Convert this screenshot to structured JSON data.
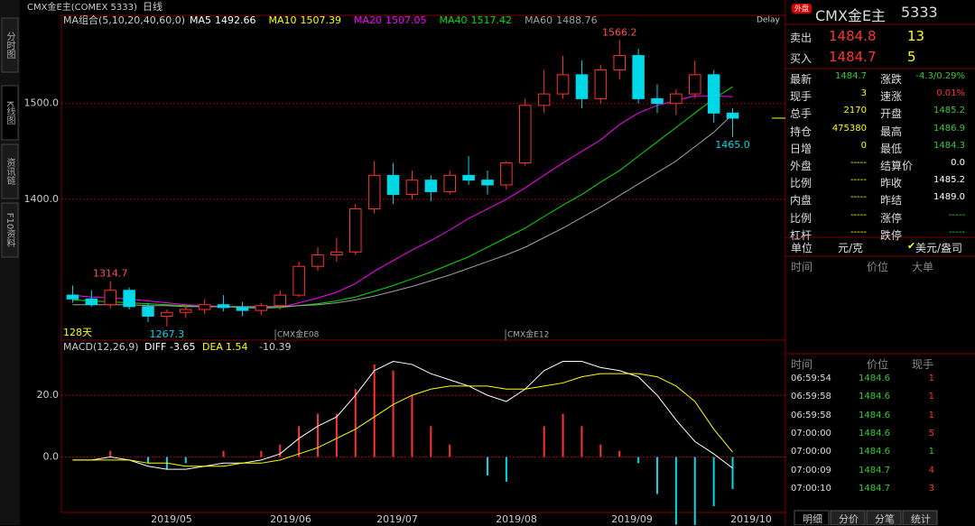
{
  "app": {
    "left_tabs": [
      "分时图",
      "K线图",
      "资讯链",
      "F10资料"
    ],
    "chart_title": "CMX金E主(COMEX 5333)",
    "period": "日线",
    "delay": "Delay",
    "days": "128天",
    "contract_marks": [
      "CMX金E08",
      "CMX金E12"
    ]
  },
  "chart_data": {
    "type": "candlestick",
    "ma_label": "MA组合(5,10,20,40,60,0)",
    "ma_legend": [
      {
        "name": "MA5",
        "value": 1492.66,
        "color": "#ffffff"
      },
      {
        "name": "MA10",
        "value": 1507.39,
        "color": "#ffff00"
      },
      {
        "name": "MA20",
        "value": 1507.05,
        "color": "#ff00ff"
      },
      {
        "name": "MA40",
        "value": 1517.42,
        "color": "#00e000"
      },
      {
        "name": "MA60",
        "value": 1488.76,
        "color": "#a0a0a0"
      }
    ],
    "candles": [
      [
        1300,
        1310,
        1292,
        1296
      ],
      [
        1296,
        1305,
        1288,
        1290
      ],
      [
        1290,
        1314.7,
        1286,
        1305
      ],
      [
        1305,
        1308,
        1285,
        1288
      ],
      [
        1288,
        1292,
        1272,
        1278
      ],
      [
        1278,
        1285,
        1267.3,
        1282
      ],
      [
        1282,
        1290,
        1276,
        1285
      ],
      [
        1285,
        1296,
        1280,
        1290
      ],
      [
        1290,
        1300,
        1283,
        1287
      ],
      [
        1287,
        1293,
        1278,
        1284
      ],
      [
        1284,
        1292,
        1279,
        1289
      ],
      [
        1289,
        1305,
        1285,
        1300
      ],
      [
        1300,
        1335,
        1298,
        1330
      ],
      [
        1330,
        1350,
        1325,
        1342
      ],
      [
        1342,
        1360,
        1335,
        1345
      ],
      [
        1345,
        1395,
        1342,
        1390
      ],
      [
        1390,
        1440,
        1385,
        1425
      ],
      [
        1425,
        1438,
        1395,
        1405
      ],
      [
        1405,
        1430,
        1400,
        1420
      ],
      [
        1420,
        1425,
        1398,
        1408
      ],
      [
        1408,
        1430,
        1405,
        1425
      ],
      [
        1425,
        1445,
        1415,
        1420
      ],
      [
        1420,
        1430,
        1405,
        1415
      ],
      [
        1415,
        1440,
        1410,
        1438
      ],
      [
        1438,
        1505,
        1435,
        1498
      ],
      [
        1498,
        1535,
        1490,
        1510
      ],
      [
        1510,
        1550,
        1505,
        1530
      ],
      [
        1530,
        1545,
        1495,
        1505
      ],
      [
        1505,
        1540,
        1500,
        1535
      ],
      [
        1535,
        1566.2,
        1525,
        1550
      ],
      [
        1550,
        1557,
        1500,
        1505
      ],
      [
        1505,
        1520,
        1490,
        1500
      ],
      [
        1500,
        1515,
        1488,
        1510
      ],
      [
        1510,
        1545,
        1505,
        1530
      ],
      [
        1530,
        1535,
        1480,
        1490
      ],
      [
        1490,
        1495,
        1465,
        1484.7
      ]
    ],
    "ma_series": [
      {
        "name": "MA20",
        "color": "#ff00ff",
        "values": [
          1300,
          1298,
          1297,
          1296,
          1294,
          1292,
          1290,
          1289,
          1288,
          1287,
          1286,
          1287,
          1292,
          1297,
          1303,
          1312,
          1325,
          1336,
          1347,
          1357,
          1368,
          1380,
          1390,
          1400,
          1412,
          1425,
          1438,
          1450,
          1462,
          1478,
          1490,
          1498,
          1503,
          1508,
          1508,
          1507.05
        ]
      },
      {
        "name": "MA40",
        "color": "#00e000",
        "values": [
          1295,
          1294,
          1293,
          1292,
          1291,
          1290,
          1289,
          1288,
          1288,
          1287,
          1287,
          1287,
          1289,
          1291,
          1294,
          1298,
          1304,
          1310,
          1317,
          1324,
          1332,
          1340,
          1350,
          1360,
          1370,
          1382,
          1394,
          1405,
          1418,
          1430,
          1445,
          1460,
          1475,
          1490,
          1505,
          1517.42
        ]
      },
      {
        "name": "MA60",
        "color": "#a0a0a0",
        "values": [
          1290,
          1290,
          1290,
          1290,
          1289,
          1289,
          1288,
          1288,
          1288,
          1288,
          1288,
          1288,
          1289,
          1290,
          1292,
          1295,
          1299,
          1304,
          1309,
          1315,
          1321,
          1328,
          1335,
          1342,
          1350,
          1360,
          1370,
          1381,
          1392,
          1404,
          1416,
          1428,
          1440,
          1455,
          1470,
          1488.76
        ]
      }
    ],
    "annotations": [
      {
        "value": 1566.2,
        "label": "1566.2"
      },
      {
        "value": 1465,
        "label": "1465.0"
      },
      {
        "value": 1314.7,
        "label": "1314.7"
      },
      {
        "value": 1267.3,
        "label": "1267.3"
      }
    ],
    "ylim": [
      1253,
      1592
    ],
    "yticks": [
      {
        "value": 1500,
        "label": "1500.0"
      },
      {
        "value": 1400,
        "label": "1400.0"
      }
    ],
    "x_labels": [
      "2019/05",
      "2019/06",
      "2019/07",
      "2019/08",
      "2019/09",
      "2019/10"
    ],
    "macd": {
      "label": "MACD(12,26,9)",
      "diff_label": "DIFF",
      "diff_value": -3.65,
      "dea_label": "DEA",
      "dea_value": 1.54,
      "hist_value": -10.39,
      "ylim": [
        -18,
        37
      ],
      "yticks": [
        {
          "value": 20,
          "label": "20.0"
        },
        {
          "value": 0,
          "label": "0.0"
        }
      ],
      "diff": [
        -1,
        -1,
        0,
        -1,
        -3,
        -4,
        -4,
        -3,
        -2,
        -2,
        -1,
        1,
        6,
        10,
        13,
        20,
        28,
        31,
        30,
        27,
        25,
        23,
        20,
        18,
        22,
        28,
        31,
        31,
        29,
        28,
        26,
        20,
        12,
        5,
        1,
        -3.65
      ],
      "dea": [
        -1,
        -1,
        -1,
        -1,
        -2,
        -2,
        -3,
        -3,
        -3,
        -2,
        -2,
        -1,
        1,
        3,
        6,
        9,
        13,
        17,
        20,
        22,
        23,
        23,
        23,
        22,
        22,
        23,
        24,
        26,
        27,
        27,
        27,
        26,
        23,
        18,
        9,
        1.54
      ],
      "hist": [
        0,
        0,
        2,
        0,
        -2,
        -4,
        -2,
        0,
        2,
        0,
        2,
        4,
        10,
        14,
        14,
        22,
        30,
        28,
        20,
        10,
        4,
        0,
        -6,
        -8,
        0,
        10,
        14,
        10,
        4,
        2,
        -2,
        -12,
        -22,
        -26,
        -16,
        -10.39
      ]
    }
  },
  "quote": {
    "badge": "外盘",
    "title": "CMX金E主",
    "code": "5333",
    "sell": [
      "卖出",
      "1484.8",
      "13"
    ],
    "buy": [
      "买入",
      "1484.7",
      "5"
    ],
    "stats": [
      [
        "最新",
        "1484.7",
        "涨跌",
        "-4.3/0.29%"
      ],
      [
        "现手",
        "3",
        "速涨",
        "0.01%"
      ],
      [
        "总手",
        "2170",
        "开盘",
        "1485.2"
      ],
      [
        "持仓",
        "475380",
        "最高",
        "1486.9"
      ],
      [
        "日增",
        "0",
        "最低",
        "1484.3"
      ],
      [
        "外盘",
        "-----",
        "结算价",
        "0.0"
      ],
      [
        "比例",
        "-----",
        "昨收",
        "1485.2"
      ],
      [
        "内盘",
        "-----",
        "昨结",
        "1489.0"
      ],
      [
        "比例",
        "-----",
        "涨停",
        "-----"
      ],
      [
        "杠杆",
        "-----",
        "跌停",
        "-----"
      ]
    ],
    "unit": [
      "单位",
      "元/克",
      "美元/盎司"
    ],
    "big_header": [
      "时间",
      "价位",
      "大单"
    ],
    "trade_header": [
      "时间",
      "价位",
      "现手"
    ],
    "trades": [
      [
        "06:59:54",
        "1484.6",
        "1"
      ],
      [
        "06:59:58",
        "1484.6",
        "1"
      ],
      [
        "06:59:58",
        "1484.6",
        "1"
      ],
      [
        "07:00:00",
        "1484.6",
        "5"
      ],
      [
        "07:00:00",
        "1484.6",
        "1"
      ],
      [
        "07:00:09",
        "1484.7",
        "4"
      ],
      [
        "07:00:10",
        "1484.7",
        "3"
      ]
    ],
    "bottom_tabs": [
      "明细",
      "分价",
      "分笔",
      "统计"
    ]
  }
}
